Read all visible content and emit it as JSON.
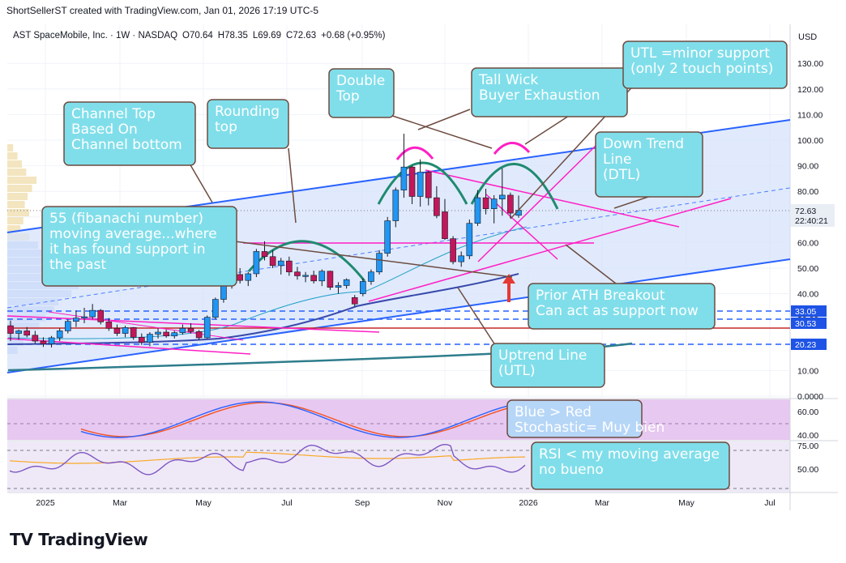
{
  "header": {
    "creator_line": "ShortSellerST created with TradingView.com, Jan 01, 2026 17:19 UTC-5"
  },
  "chart_data": {
    "type": "candlestick",
    "symbol": "AST SpaceMobile, Inc. · 1W · NASDAQ",
    "ohlc_legend": {
      "O": "70.64",
      "H": "78.35",
      "L": "69.69",
      "C": "72.63",
      "change": "+0.68 (+0.95%)"
    },
    "currency": "USD",
    "last_price": "72.63",
    "countdown": "22:40:21",
    "price_axis_ticks": [
      "130.00",
      "120.00",
      "110.00",
      "100.00",
      "90.00",
      "80.00",
      "70.00",
      "60.00",
      "50.00",
      "40.00",
      "30.00",
      "20.00",
      "10.00",
      "0.0000"
    ],
    "level_tags": [
      "33.05",
      "30.53",
      "20.23"
    ],
    "x_axis_labels": [
      "2025",
      "Mar",
      "May",
      "Jul",
      "Sep",
      "Nov",
      "2026",
      "Mar",
      "May",
      "Jul"
    ],
    "ylim": [
      0,
      130
    ],
    "weekly_candles": [
      {
        "o": 27.5,
        "h": 29.5,
        "l": 21.5,
        "c": 24.5
      },
      {
        "o": 24.5,
        "h": 26.0,
        "l": 22.0,
        "c": 25.5
      },
      {
        "o": 25.5,
        "h": 27.0,
        "l": 23.0,
        "c": 23.8
      },
      {
        "o": 23.8,
        "h": 25.5,
        "l": 20.5,
        "c": 21.5
      },
      {
        "o": 21.5,
        "h": 23.0,
        "l": 19.2,
        "c": 20.4
      },
      {
        "o": 20.4,
        "h": 23.5,
        "l": 19.0,
        "c": 22.8
      },
      {
        "o": 22.8,
        "h": 26.5,
        "l": 21.5,
        "c": 25.5
      },
      {
        "o": 25.5,
        "h": 30.0,
        "l": 24.5,
        "c": 29.2
      },
      {
        "o": 29.2,
        "h": 33.5,
        "l": 27.0,
        "c": 30.5
      },
      {
        "o": 30.5,
        "h": 34.5,
        "l": 28.5,
        "c": 31.0
      },
      {
        "o": 31.0,
        "h": 36.0,
        "l": 30.0,
        "c": 33.5
      },
      {
        "o": 33.5,
        "h": 34.0,
        "l": 28.0,
        "c": 29.0
      },
      {
        "o": 29.0,
        "h": 30.5,
        "l": 25.5,
        "c": 26.5
      },
      {
        "o": 26.5,
        "h": 28.0,
        "l": 23.5,
        "c": 24.5
      },
      {
        "o": 24.5,
        "h": 27.5,
        "l": 23.0,
        "c": 26.8
      },
      {
        "o": 26.8,
        "h": 27.0,
        "l": 22.0,
        "c": 23.0
      },
      {
        "o": 23.0,
        "h": 24.5,
        "l": 20.0,
        "c": 21.0
      },
      {
        "o": 21.0,
        "h": 25.0,
        "l": 19.5,
        "c": 24.2
      },
      {
        "o": 24.2,
        "h": 26.5,
        "l": 22.5,
        "c": 25.0
      },
      {
        "o": 25.0,
        "h": 26.0,
        "l": 22.8,
        "c": 23.5
      },
      {
        "o": 23.5,
        "h": 25.5,
        "l": 22.5,
        "c": 24.8
      },
      {
        "o": 24.8,
        "h": 28.0,
        "l": 24.0,
        "c": 26.5
      },
      {
        "o": 26.5,
        "h": 28.5,
        "l": 24.5,
        "c": 25.2
      },
      {
        "o": 25.2,
        "h": 25.8,
        "l": 22.0,
        "c": 22.8
      },
      {
        "o": 22.8,
        "h": 31.5,
        "l": 22.5,
        "c": 30.8
      },
      {
        "o": 30.8,
        "h": 38.5,
        "l": 30.0,
        "c": 37.8
      },
      {
        "o": 37.8,
        "h": 45.5,
        "l": 36.5,
        "c": 44.2
      },
      {
        "o": 44.2,
        "h": 49.0,
        "l": 42.0,
        "c": 47.5
      },
      {
        "o": 47.5,
        "h": 50.0,
        "l": 44.0,
        "c": 45.2
      },
      {
        "o": 45.2,
        "h": 48.5,
        "l": 43.0,
        "c": 47.8
      },
      {
        "o": 47.8,
        "h": 57.5,
        "l": 46.5,
        "c": 56.5
      },
      {
        "o": 56.5,
        "h": 60.5,
        "l": 53.0,
        "c": 54.5
      },
      {
        "o": 54.5,
        "h": 57.0,
        "l": 50.0,
        "c": 51.0
      },
      {
        "o": 51.0,
        "h": 54.0,
        "l": 47.5,
        "c": 52.8
      },
      {
        "o": 52.8,
        "h": 54.5,
        "l": 47.0,
        "c": 48.5
      },
      {
        "o": 48.5,
        "h": 50.5,
        "l": 45.5,
        "c": 47.0
      },
      {
        "o": 47.0,
        "h": 48.5,
        "l": 44.5,
        "c": 47.2
      },
      {
        "o": 47.2,
        "h": 49.0,
        "l": 44.0,
        "c": 45.0
      },
      {
        "o": 45.0,
        "h": 49.5,
        "l": 43.0,
        "c": 48.8
      },
      {
        "o": 48.8,
        "h": 49.0,
        "l": 41.5,
        "c": 42.5
      },
      {
        "o": 42.5,
        "h": 44.5,
        "l": 40.0,
        "c": 43.2
      },
      {
        "o": 43.2,
        "h": 46.0,
        "l": 42.0,
        "c": 45.5
      },
      {
        "o": 38.5,
        "h": 39.5,
        "l": 35.0,
        "c": 36.0
      },
      {
        "o": 40.0,
        "h": 46.0,
        "l": 39.0,
        "c": 44.8
      },
      {
        "o": 44.8,
        "h": 49.5,
        "l": 43.5,
        "c": 48.5
      },
      {
        "o": 48.5,
        "h": 57.0,
        "l": 47.5,
        "c": 55.8
      },
      {
        "o": 55.8,
        "h": 70.0,
        "l": 54.5,
        "c": 68.5
      },
      {
        "o": 68.5,
        "h": 81.5,
        "l": 66.0,
        "c": 80.5
      },
      {
        "o": 80.5,
        "h": 102.5,
        "l": 77.5,
        "c": 89.5
      },
      {
        "o": 89.5,
        "h": 90.0,
        "l": 75.0,
        "c": 78.0
      },
      {
        "o": 78.0,
        "h": 92.5,
        "l": 74.0,
        "c": 87.5
      },
      {
        "o": 87.5,
        "h": 88.0,
        "l": 74.5,
        "c": 77.5
      },
      {
        "o": 77.5,
        "h": 82.0,
        "l": 69.5,
        "c": 70.5
      },
      {
        "o": 72.0,
        "h": 77.0,
        "l": 61.0,
        "c": 61.5
      },
      {
        "o": 61.5,
        "h": 62.5,
        "l": 51.5,
        "c": 52.5
      },
      {
        "o": 52.5,
        "h": 56.5,
        "l": 50.5,
        "c": 54.8
      },
      {
        "o": 54.8,
        "h": 69.0,
        "l": 53.5,
        "c": 67.5
      },
      {
        "o": 67.5,
        "h": 80.5,
        "l": 66.5,
        "c": 77.5
      },
      {
        "o": 77.5,
        "h": 81.0,
        "l": 71.0,
        "c": 73.2
      },
      {
        "o": 73.2,
        "h": 78.5,
        "l": 67.5,
        "c": 77.0
      },
      {
        "o": 77.0,
        "h": 89.0,
        "l": 70.5,
        "c": 78.5
      },
      {
        "o": 78.5,
        "h": 79.5,
        "l": 69.5,
        "c": 71.5
      },
      {
        "o": 70.64,
        "h": 78.35,
        "l": 69.69,
        "c": 72.63
      }
    ],
    "indicator_panes": [
      {
        "name": "Stochastic",
        "ticks": [
          "60.00",
          "40.00"
        ]
      },
      {
        "name": "RSI",
        "ticks": [
          "75.00",
          "50.00"
        ]
      }
    ]
  },
  "annotations": {
    "channel_top": "Channel Top\nBased On\nChannel bottom",
    "rounding_top": "Rounding\ntop",
    "double_top": "Double\nTop",
    "tall_wick": "Tall Wick\nBuyer Exhaustion",
    "utl_minor": "UTL =minor support\n(only 2 touch points)",
    "down_trend": "Down Trend\nLine\n(DTL)",
    "fib_ma": "55 (fibanachi number)\nmoving average...where\nit has found support in\nthe past",
    "prior_ath": "Prior ATH Breakout\nCan act as support now",
    "uptrend": "Uptrend Line\n(UTL)",
    "stoch_note": "Blue > Red\nStochastic= Muy bien",
    "rsi_note": "RSI < my moving average\nno bueno"
  },
  "footer": {
    "brand": "TradingView"
  },
  "colors": {
    "up": "#2196f3",
    "down": "#c2185b",
    "callout_fill": "#80deea",
    "callout_border": "#6d4c41",
    "channel_fill": "#d6e3fb",
    "channel_line": "#2962ff",
    "magenta": "#ff1fc4",
    "green_arc": "#1f8a70",
    "dashed_level": "#2962ff",
    "red_level": "#c62828",
    "ma_dark": "#3949ab",
    "ma_teal": "#2e7d8c",
    "stoch_bg": "#e7c8f0",
    "rsi_bg": "#efe9f7"
  }
}
